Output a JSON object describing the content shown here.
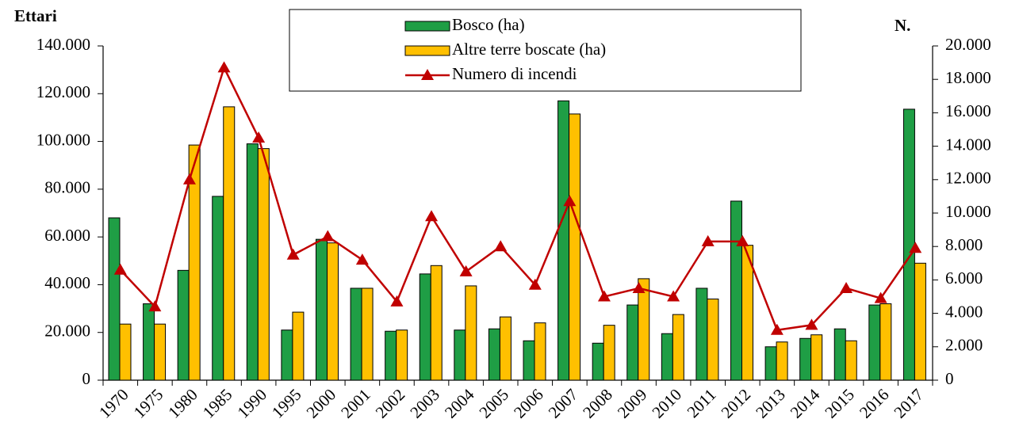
{
  "chart_data": {
    "type": "bar-line",
    "y_label": "Ettari",
    "y2_label": "N.",
    "categories": [
      "1970",
      "1975",
      "1980",
      "1985",
      "1990",
      "1995",
      "2000",
      "2001",
      "2002",
      "2003",
      "2004",
      "2005",
      "2006",
      "2007",
      "2008",
      "2009",
      "2010",
      "2011",
      "2012",
      "2013",
      "2014",
      "2015",
      "2016",
      "2017"
    ],
    "series": [
      {
        "name": "Bosco (ha)",
        "type": "bar",
        "color": "#1f9e45",
        "values": [
          68000,
          32000,
          46000,
          77000,
          99000,
          21000,
          59000,
          38500,
          20500,
          44500,
          21000,
          21500,
          16500,
          117000,
          15500,
          31500,
          19500,
          38500,
          75000,
          14000,
          17500,
          21500,
          31500,
          113500
        ]
      },
      {
        "name": "Altre terre boscate (ha)",
        "type": "bar",
        "color": "#ffc000",
        "values": [
          23500,
          23500,
          98500,
          114500,
          97000,
          28500,
          57500,
          38500,
          21000,
          48000,
          39500,
          26500,
          24000,
          111500,
          23000,
          42500,
          27500,
          34000,
          56500,
          16000,
          19000,
          16500,
          32000,
          49000
        ]
      },
      {
        "name": "Numero di incendi",
        "type": "line",
        "axis": "y2",
        "color": "#c00000",
        "values": [
          6600,
          4400,
          12000,
          18700,
          14500,
          7500,
          8600,
          7200,
          4700,
          9800,
          6500,
          8000,
          5700,
          10700,
          5000,
          5500,
          5000,
          8300,
          8300,
          3000,
          3300,
          5500,
          4900,
          7900
        ]
      }
    ],
    "ylim": [
      0,
      140000
    ],
    "yticks": [
      0,
      {
        "value": 20000,
        "label": "20.000"
      },
      {
        "value": 40000,
        "label": "40.000"
      },
      {
        "value": 60000,
        "label": "60.000"
      },
      {
        "value": 80000,
        "label": "80.000"
      },
      {
        "value": 100000,
        "label": "100.000"
      },
      {
        "value": 120000,
        "label": "120.000"
      },
      {
        "value": 140000,
        "label": "140.000"
      }
    ],
    "y2lim": [
      0,
      20000
    ],
    "y2ticks": [
      0,
      {
        "value": 2000,
        "label": "2.000"
      },
      {
        "value": 4000,
        "label": "4.000"
      },
      {
        "value": 6000,
        "label": "6.000"
      },
      {
        "value": 8000,
        "label": "8.000"
      },
      {
        "value": 10000,
        "label": "10.000"
      },
      {
        "value": 12000,
        "label": "12.000"
      },
      {
        "value": 14000,
        "label": "14.000"
      },
      {
        "value": 16000,
        "label": "16.000"
      },
      {
        "value": 18000,
        "label": "18.000"
      },
      {
        "value": 20000,
        "label": "20.000"
      }
    ],
    "grid": false
  }
}
